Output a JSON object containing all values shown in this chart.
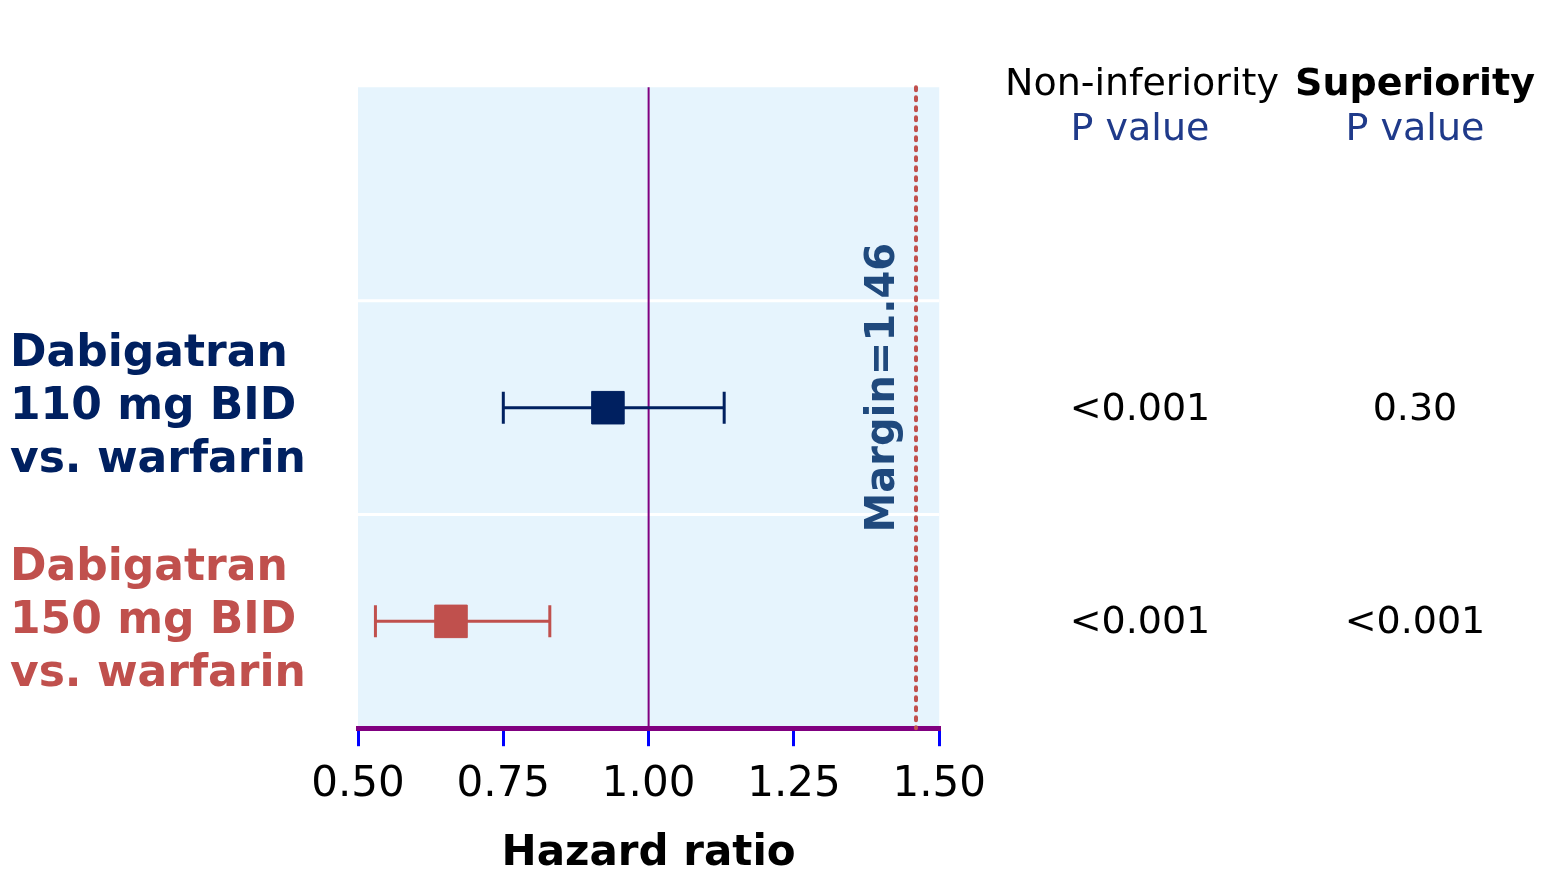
{
  "chart_data": {
    "type": "scatter",
    "orientation": "horizontal",
    "xlabel": "Hazard ratio",
    "categories": [
      null,
      "Dabigatran 110 mg BID vs. warfarin",
      "Dabigatran 150 mg BID vs. warfarin"
    ],
    "series": [
      {
        "color": "#002060",
        "values": [
          null,
          0.93,
          null
        ],
        "errors": [
          null,
          [
            0.75,
            1.13
          ],
          null
        ]
      },
      {
        "color": "#c0504d",
        "values": [
          null,
          null,
          0.66
        ],
        "errors": [
          null,
          null,
          [
            0.53,
            0.83
          ]
        ]
      }
    ],
    "marker": "square",
    "grid": "y",
    "legend": false,
    "xlim": [
      0.5,
      1.5
    ],
    "xticks": [
      {
        "value": 0.5,
        "label": "0.50"
      },
      {
        "value": 0.75,
        "label": "0.75"
      },
      {
        "value": 1,
        "label": "1.00"
      },
      {
        "value": 1.25,
        "label": "1.25"
      },
      {
        "value": 1.5,
        "label": "1.50"
      }
    ],
    "ref_lines": [
      {
        "axis": "x",
        "value": 1,
        "label": null,
        "color": "#800080",
        "line_style": "solid"
      },
      {
        "axis": "x",
        "value": 1.46,
        "label": "Margin=1.46",
        "color": "#c0504d",
        "line_style": "dotted"
      }
    ],
    "annotations": [
      "Non-inferiority\nP value",
      "Superiority\nP value",
      "<0.001",
      "0.30",
      "<0.001",
      "<0.001"
    ]
  }
}
